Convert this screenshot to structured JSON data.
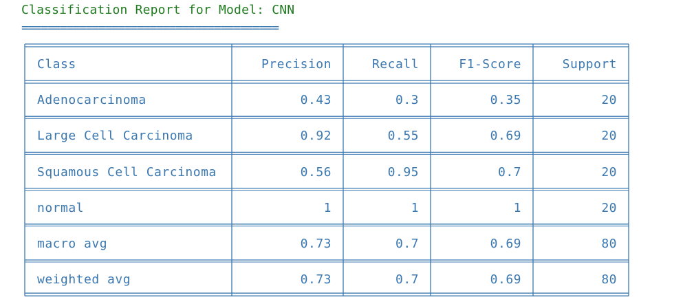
{
  "title": "Classification Report for Model: CNN",
  "separator": "========================================",
  "table": {
    "headers": [
      "Class",
      "Precision",
      "Recall",
      "F1-Score",
      "Support"
    ],
    "rows": [
      [
        "Adenocarcinoma",
        "0.43",
        "0.3",
        "0.35",
        "20"
      ],
      [
        "Large Cell Carcinoma",
        "0.92",
        "0.55",
        "0.69",
        "20"
      ],
      [
        "Squamous Cell Carcinoma",
        "0.56",
        "0.95",
        "0.7",
        "20"
      ],
      [
        "normal",
        "1",
        "1",
        "1",
        "20"
      ],
      [
        "macro avg",
        "0.73",
        "0.7",
        "0.69",
        "80"
      ],
      [
        "weighted avg",
        "0.73",
        "0.7",
        "0.69",
        "80"
      ]
    ]
  },
  "colors": {
    "title": "#1f7a1f",
    "text": "#3b78b0",
    "border": "#3b78b0"
  }
}
